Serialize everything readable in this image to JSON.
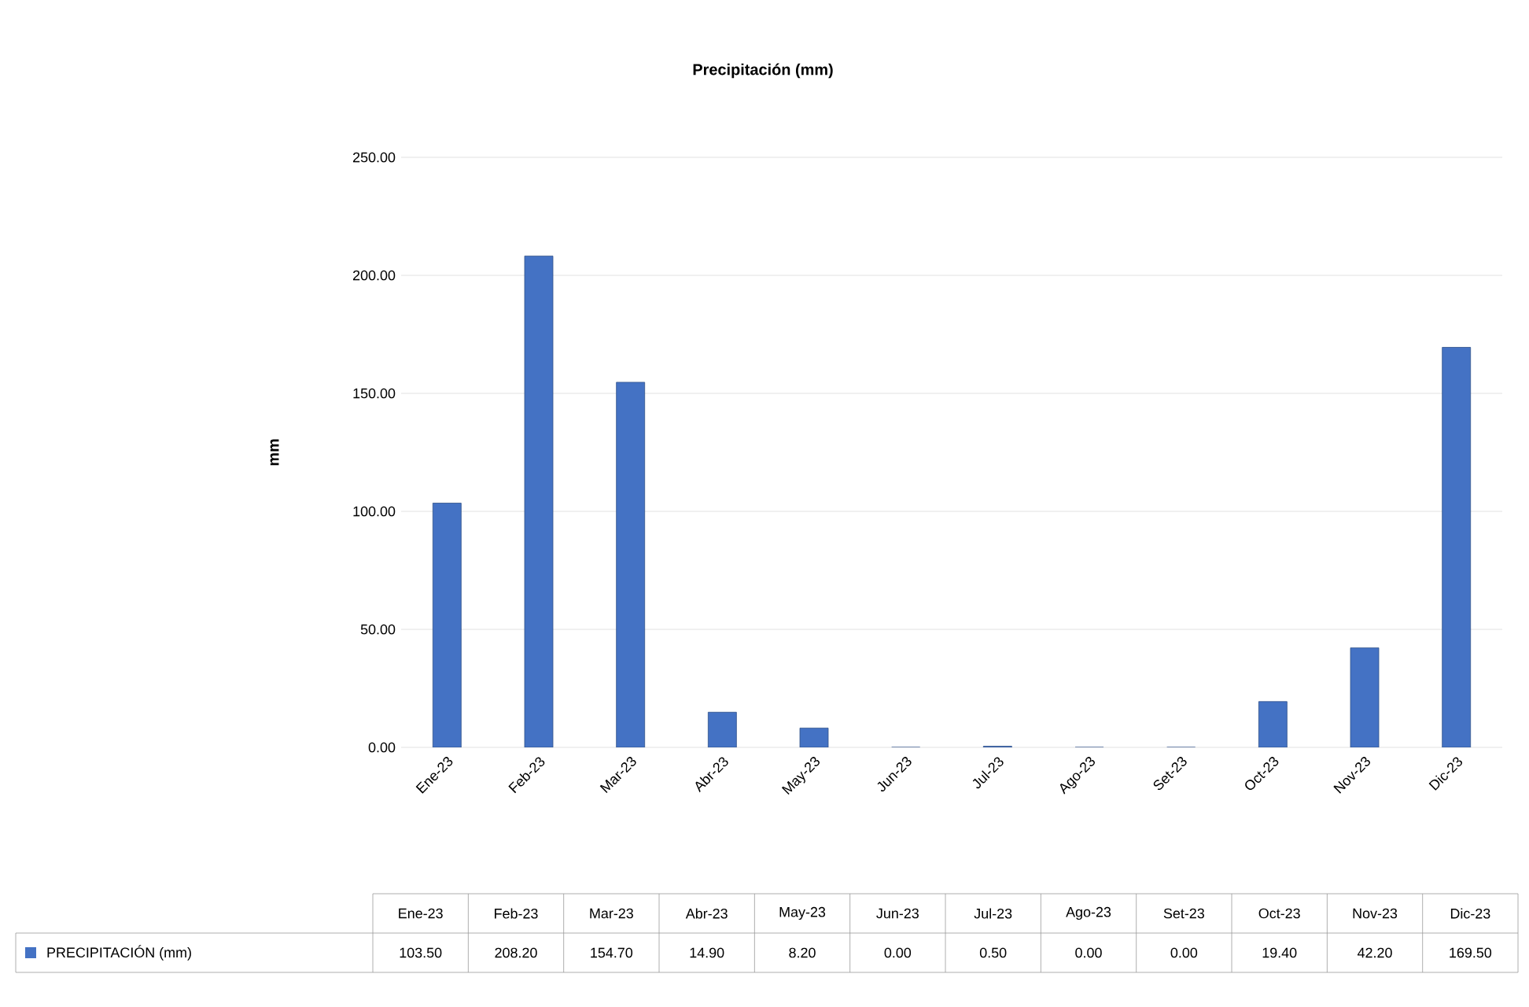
{
  "chart_data": {
    "type": "bar",
    "title": "Precipitación (mm)",
    "ylabel": "mm",
    "categories": [
      "Ene-23",
      "Feb-23",
      "Mar-23",
      "Abr-23",
      "May-23",
      "Jun-23",
      "Jul-23",
      "Ago-23",
      "Set-23",
      "Oct-23",
      "Nov-23",
      "Dic-23"
    ],
    "series": [
      {
        "name": "PRECIPITACIÓN (mm)",
        "color": "#4472c4",
        "values": [
          103.5,
          208.2,
          154.7,
          14.9,
          8.2,
          0.0,
          0.5,
          0.0,
          0.0,
          19.4,
          42.2,
          169.5
        ],
        "value_labels": [
          "103.50",
          "208.20",
          "154.70",
          "14.90",
          "8.20",
          "0.00",
          "0.50",
          "0.00",
          "0.00",
          "19.40",
          "42.20",
          "169.50"
        ]
      }
    ],
    "ylim": [
      0,
      250
    ],
    "yticks": [
      {
        "value": 0,
        "label": "0.00"
      },
      {
        "value": 50,
        "label": "50.00"
      },
      {
        "value": 100,
        "label": "100.00"
      },
      {
        "value": 150,
        "label": "150.00"
      },
      {
        "value": 200,
        "label": "200.00"
      },
      {
        "value": 250,
        "label": "250.00"
      }
    ],
    "grid": "y",
    "legend": "bottom"
  }
}
